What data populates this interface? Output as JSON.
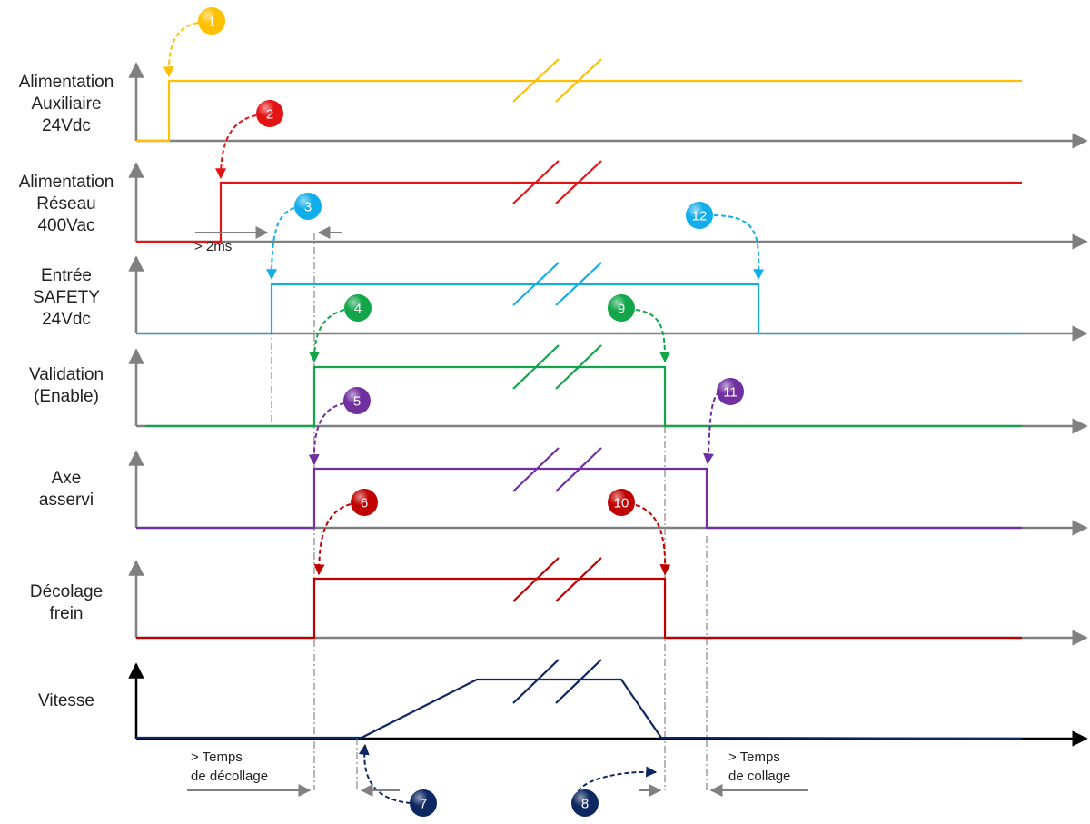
{
  "signals": [
    {
      "id": "aux",
      "label_lines": [
        "Alimentation",
        "Auxiliaire",
        "24Vdc"
      ],
      "color": "#FFC000"
    },
    {
      "id": "reseau",
      "label_lines": [
        "Alimentation",
        "Réseau",
        "400Vac"
      ],
      "color": "#E31414"
    },
    {
      "id": "safety",
      "label_lines": [
        "Entrée",
        "SAFETY",
        "24Vdc"
      ],
      "color": "#11AEEA"
    },
    {
      "id": "enable",
      "label_lines": [
        "Validation",
        "(Enable)"
      ],
      "color": "#13A54A"
    },
    {
      "id": "axe",
      "label_lines": [
        "Axe",
        "asservi"
      ],
      "color": "#7030A0"
    },
    {
      "id": "frein",
      "label_lines": [
        "Décolage",
        "frein"
      ],
      "color": "#C00000"
    },
    {
      "id": "vitesse",
      "label_lines": [
        "Vitesse"
      ],
      "color": "#0D2760"
    }
  ],
  "steps": [
    {
      "number": "1",
      "color": "#FFC000"
    },
    {
      "number": "2",
      "color": "#E31414"
    },
    {
      "number": "3",
      "color": "#11AEEA"
    },
    {
      "number": "4",
      "color": "#13A54A"
    },
    {
      "number": "5",
      "color": "#7030A0"
    },
    {
      "number": "6",
      "color": "#C00000"
    },
    {
      "number": "7",
      "color": "#0D2760"
    },
    {
      "number": "8",
      "color": "#0D2760"
    },
    {
      "number": "9",
      "color": "#13A54A"
    },
    {
      "number": "10",
      "color": "#C00000"
    },
    {
      "number": "11",
      "color": "#7030A0"
    },
    {
      "number": "12",
      "color": "#11AEEA"
    }
  ],
  "notes": {
    "min_delay": "> 2ms",
    "release_time": [
      "> Temps",
      "de décollage"
    ],
    "engage_time": [
      "> Temps",
      "de collage"
    ]
  },
  "colors": {
    "axis": "#808080",
    "guide": "#909090",
    "speed_axis": "#000000"
  }
}
